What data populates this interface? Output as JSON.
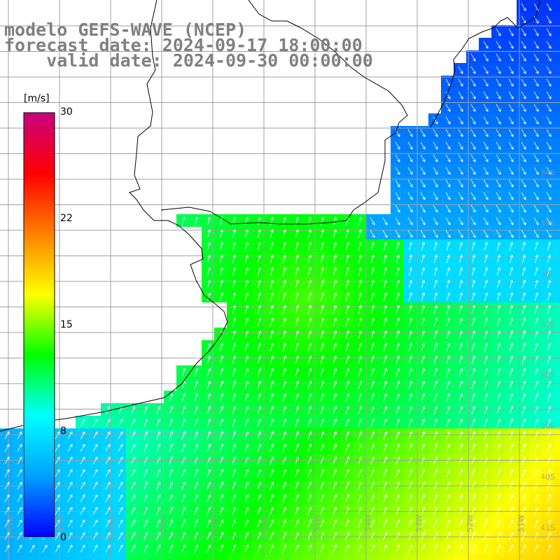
{
  "header": {
    "line1": "modelo GEFS-WAVE (NCEP)",
    "line2": "forecast date: 2024-09-17 18:00:00",
    "line3": "    valid date: 2024-09-30 00:00:00"
  },
  "colorbar": {
    "unit": "[m/s]",
    "min": 0,
    "max": 30,
    "ticks": [
      "30",
      "22",
      "15",
      "8",
      "0"
    ],
    "tick_values": [
      30,
      22,
      15,
      8,
      0
    ],
    "colors": [
      "#0000ff",
      "#00a0ff",
      "#00ffff",
      "#00ff00",
      "#ffff00",
      "#ff8000",
      "#ff0000",
      "#c80080"
    ]
  },
  "map": {
    "variable": "wind speed and direction",
    "lon_labels": [
      "61W",
      "60W",
      "59W",
      "58W",
      "57W",
      "56W",
      "55W",
      "54W",
      "53W",
      "52W",
      "51W"
    ],
    "lat_labels": [
      "34S",
      "35S",
      "36S",
      "37S",
      "38S",
      "39S",
      "40S",
      "41S"
    ],
    "land_color": "#ffffff",
    "grid_color": "#a0a0a0",
    "coast_color": "#000000",
    "arrow_color": "#ffffff"
  }
}
